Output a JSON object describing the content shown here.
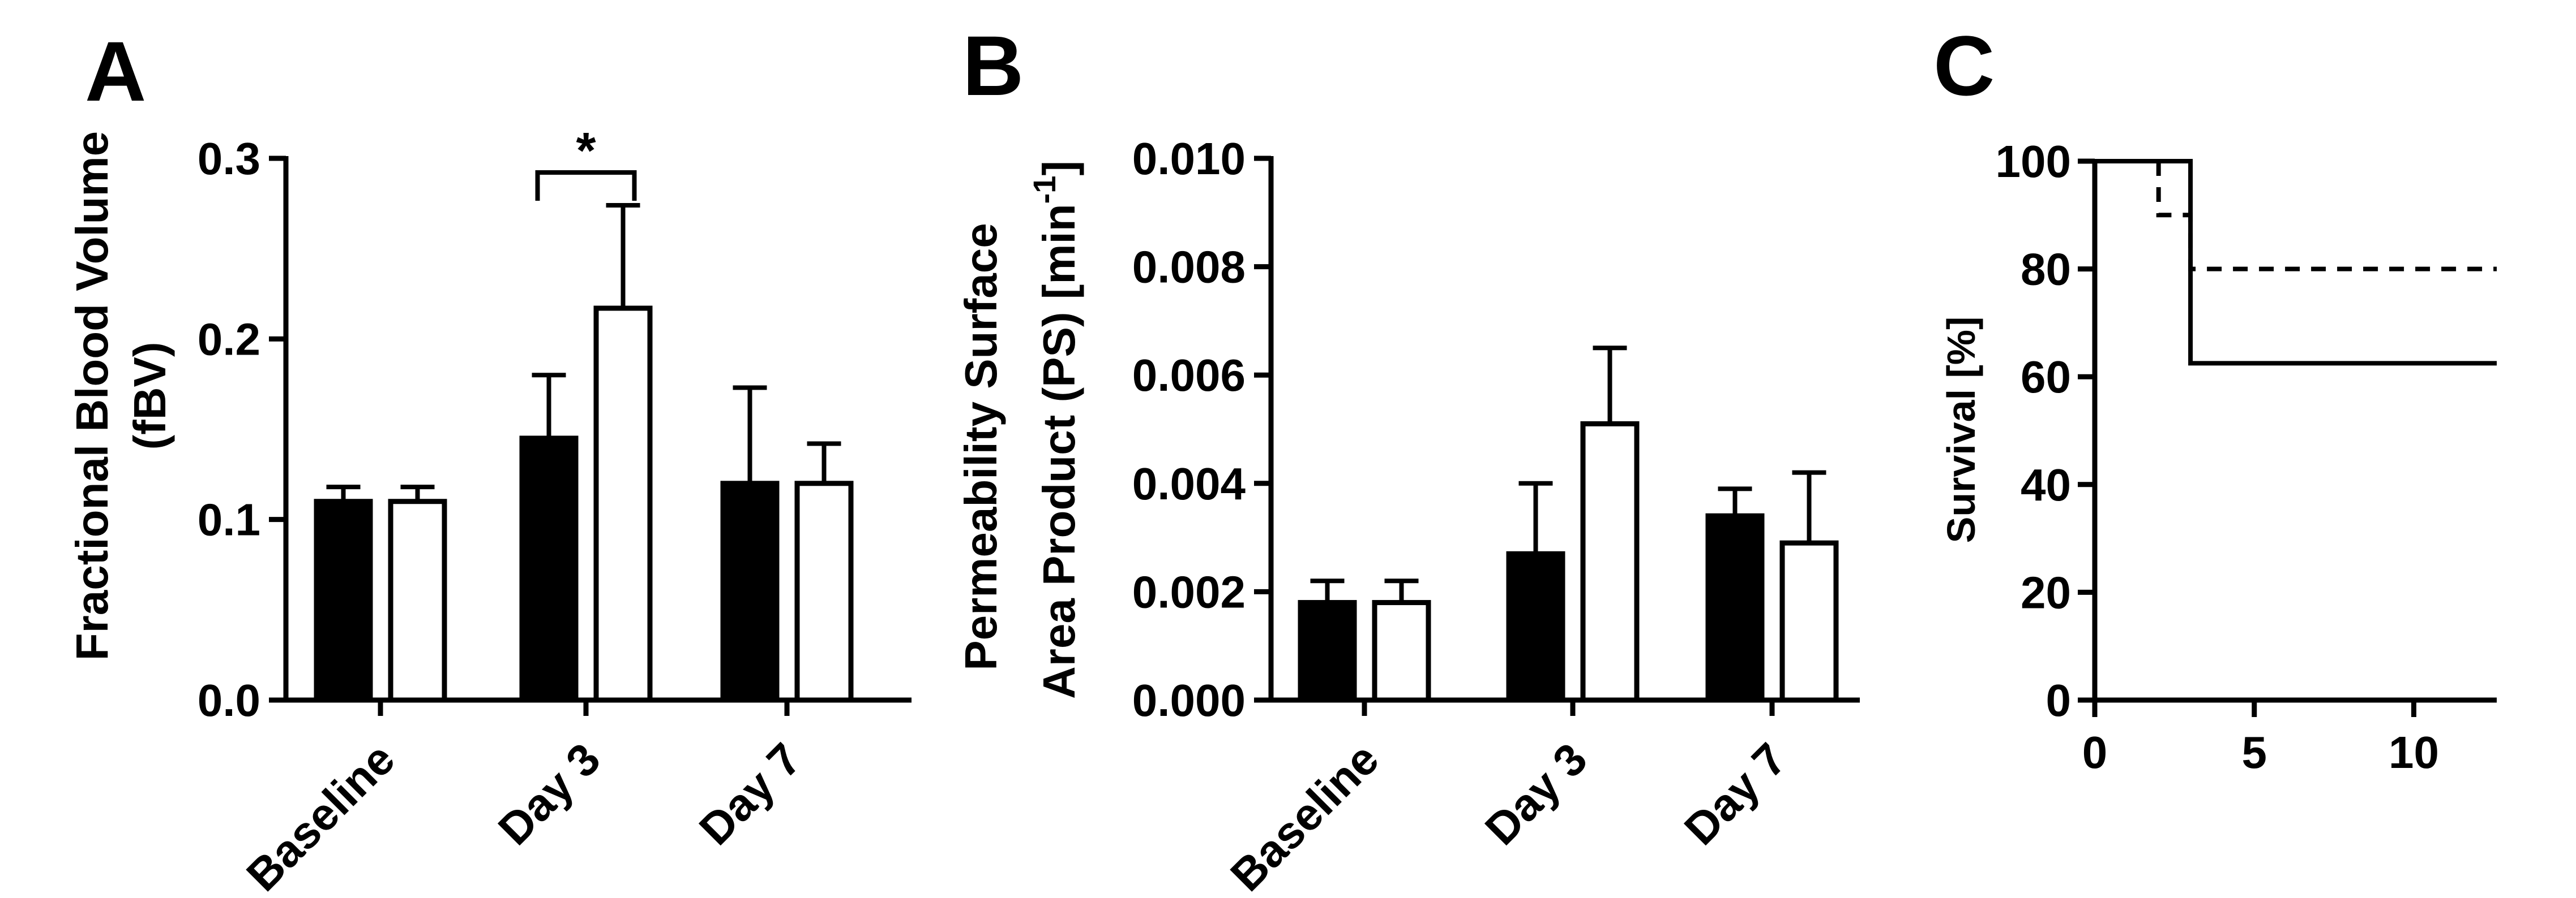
{
  "chart_data": [
    {
      "panel": "A",
      "type": "bar",
      "ylabel_line1": "Fractional Blood Volume",
      "ylabel_line2": "(fBV)",
      "ylim": [
        0,
        0.3
      ],
      "yticks": [
        "0.0",
        "0.1",
        "0.2",
        "0.3"
      ],
      "categories": [
        "Baseline",
        "Day 3",
        "Day 7"
      ],
      "series": [
        {
          "name": "filled",
          "fill": "#000000",
          "values": [
            0.11,
            0.145,
            0.12
          ],
          "errors": [
            0.008,
            0.035,
            0.053
          ]
        },
        {
          "name": "open",
          "fill": "#ffffff",
          "values": [
            0.11,
            0.217,
            0.12
          ],
          "errors": [
            0.008,
            0.057,
            0.022
          ]
        }
      ],
      "significance": {
        "category": "Day 3",
        "label": "*"
      }
    },
    {
      "panel": "B",
      "type": "bar",
      "ylabel_line1": "Permeability Surface",
      "ylabel_line2_main": "Area Product (PS) [min",
      "ylabel_line2_sup": "-1",
      "ylabel_line2_end": "]",
      "ylim": [
        0,
        0.01
      ],
      "yticks": [
        "0.000",
        "0.002",
        "0.004",
        "0.006",
        "0.008",
        "0.010"
      ],
      "categories": [
        "Baseline",
        "Day 3",
        "Day 7"
      ],
      "series": [
        {
          "name": "filled",
          "fill": "#000000",
          "values": [
            0.0018,
            0.0027,
            0.0034
          ],
          "errors": [
            0.0004,
            0.0013,
            0.0005
          ]
        },
        {
          "name": "open",
          "fill": "#ffffff",
          "values": [
            0.0018,
            0.0051,
            0.0029
          ],
          "errors": [
            0.0004,
            0.0014,
            0.0013
          ]
        }
      ]
    },
    {
      "panel": "C",
      "type": "line",
      "subtype": "step-survival",
      "ylabel": "Survival [%]",
      "ylim": [
        0,
        100
      ],
      "xlim": [
        0,
        12.6
      ],
      "yticks": [
        "0",
        "20",
        "40",
        "60",
        "80",
        "100"
      ],
      "xticks": [
        "0",
        "5",
        "10"
      ],
      "series": [
        {
          "name": "solid",
          "style": "solid",
          "x": [
            0,
            3,
            3,
            12.6
          ],
          "y": [
            100,
            100,
            62.5,
            62.5
          ]
        },
        {
          "name": "dashed",
          "style": "dashed",
          "x": [
            2,
            2,
            3,
            3,
            12.6
          ],
          "y": [
            100,
            90,
            90,
            80,
            80
          ]
        }
      ]
    }
  ]
}
